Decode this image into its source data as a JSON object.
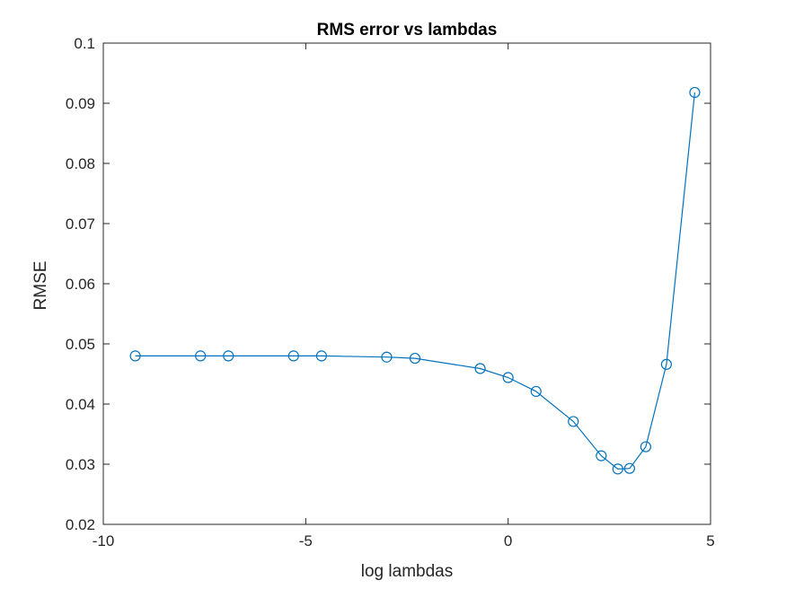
{
  "chart_data": {
    "type": "line",
    "title": "RMS error vs lambdas",
    "xlabel": "log lambdas",
    "ylabel": "RMSE",
    "xlim": [
      -10,
      5
    ],
    "ylim": [
      0.02,
      0.1
    ],
    "xticks": [
      -10,
      -5,
      0,
      5
    ],
    "xtick_labels": [
      "-10",
      "-5",
      "0",
      "5"
    ],
    "yticks": [
      0.02,
      0.03,
      0.04,
      0.05,
      0.06,
      0.07,
      0.08,
      0.09,
      0.1
    ],
    "ytick_labels": [
      "0.02",
      "0.03",
      "0.04",
      "0.05",
      "0.06",
      "0.07",
      "0.08",
      "0.09",
      "0.1"
    ],
    "grid": false,
    "marker": "circle",
    "series": [
      {
        "color": "#0072BD",
        "x": [
          -9.21,
          -7.6,
          -6.91,
          -5.3,
          -4.61,
          -3.0,
          -2.3,
          -0.69,
          0.0,
          0.69,
          1.61,
          2.3,
          2.71,
          3.0,
          3.4,
          3.91,
          4.61
        ],
        "y": [
          0.048,
          0.048,
          0.048,
          0.048,
          0.048,
          0.0478,
          0.0476,
          0.0459,
          0.0444,
          0.0421,
          0.0371,
          0.0314,
          0.0292,
          0.0293,
          0.0329,
          0.0466,
          0.0918
        ]
      }
    ]
  }
}
